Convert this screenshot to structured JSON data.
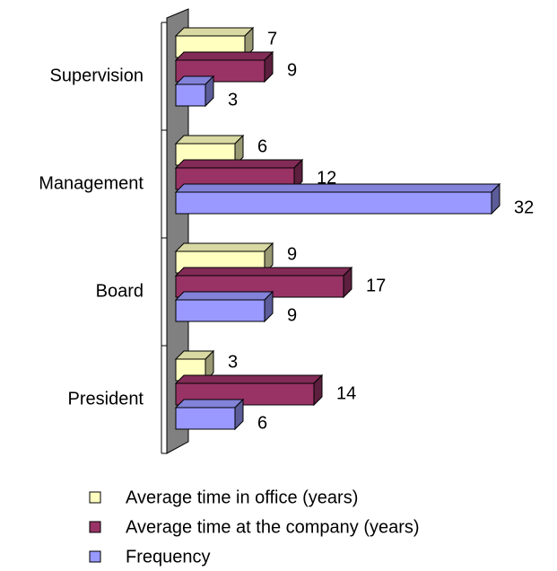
{
  "chart_data": {
    "type": "bar3d_horizontal",
    "categories": [
      "Supervision",
      "Management",
      "Board",
      "President"
    ],
    "series": [
      {
        "name": "Average time in office (years)",
        "color": "#ffffc0",
        "values": [
          7,
          6,
          9,
          3
        ]
      },
      {
        "name": "Average time at the company (years)",
        "color": "#993366",
        "values": [
          9,
          12,
          17,
          14
        ]
      },
      {
        "name": "Frequency",
        "color": "#9999ff",
        "values": [
          3,
          32,
          9,
          6
        ]
      }
    ]
  }
}
